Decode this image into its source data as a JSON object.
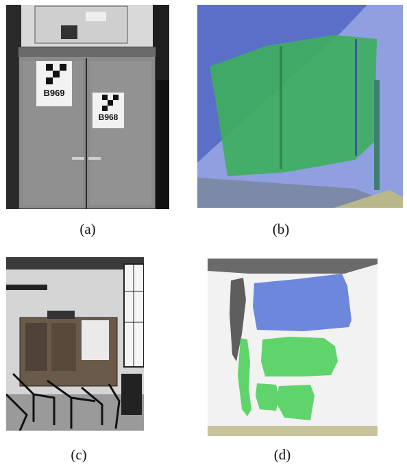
{
  "figure": {
    "panels": [
      {
        "id": "a",
        "caption": "(a)",
        "marker_labels": [
          "B969",
          "B968"
        ]
      },
      {
        "id": "b",
        "caption": "(b)"
      },
      {
        "id": "c",
        "caption": "(c)"
      },
      {
        "id": "d",
        "caption": "(d)"
      }
    ]
  }
}
